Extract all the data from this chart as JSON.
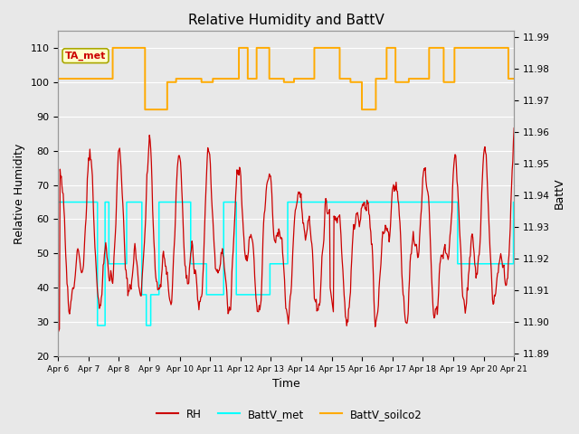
{
  "title": "Relative Humidity and BattV",
  "xlabel": "Time",
  "ylabel_left": "Relative Humidity",
  "ylabel_right": "BattV",
  "annotation_text": "TA_met",
  "annotation_color": "#cc0000",
  "annotation_bg": "#ffffcc",
  "annotation_border": "#aaa800",
  "ylim_left": [
    20,
    115
  ],
  "ylim_right": [
    11.889,
    11.992
  ],
  "yticks_left": [
    20,
    30,
    40,
    50,
    60,
    70,
    80,
    90,
    100,
    110
  ],
  "yticks_right": [
    11.89,
    11.9,
    11.91,
    11.92,
    11.93,
    11.94,
    11.95,
    11.96,
    11.97,
    11.98,
    11.99
  ],
  "bg_color": "#e8e8e8",
  "plot_bg_color": "#e8e8e8",
  "grid_color": "white",
  "rh_color": "#cc0000",
  "battv_met_color": "cyan",
  "battv_soilco2_color": "#ffaa00",
  "day_labels": [
    "Apr 6",
    "Apr 7",
    "Apr 8",
    "Apr 9",
    "Apr 10",
    "Apr 11",
    "Apr 12",
    "Apr 13",
    "Apr 14",
    "Apr 15",
    "Apr 16",
    "Apr 17",
    "Apr 18",
    "Apr 19",
    "Apr 20",
    "Apr 21"
  ]
}
